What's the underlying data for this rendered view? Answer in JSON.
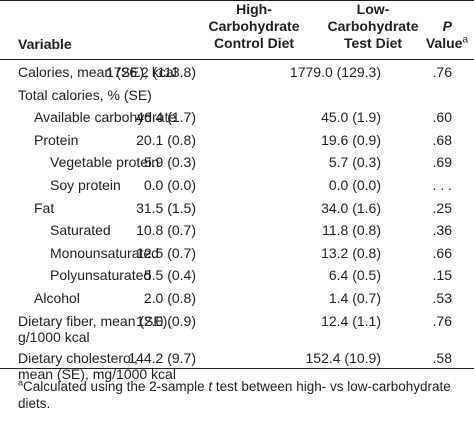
{
  "header": {
    "variable": "Variable",
    "col1_line1": "High-",
    "col1_line2": "Carbohydrate",
    "col1_line3": "Control Diet",
    "col2_line1": "Low-",
    "col2_line2": "Carbohydrate",
    "col2_line3": "Test Diet",
    "p_line1": "P",
    "p_line2": "Value",
    "p_sup": "a"
  },
  "rows": [
    {
      "label": "Calories, mean (SE), kcal",
      "label2": "",
      "indent": 0,
      "v1": "1726.2 (113.8)",
      "v2": "1779.0 (129.3)",
      "p": ".76"
    },
    {
      "label": "Total calories, % (SE)",
      "label2": "",
      "indent": 0,
      "v1": "",
      "v2": "",
      "p": ""
    },
    {
      "label": "Available carbohydrate",
      "label2": "",
      "indent": 1,
      "v1": "46.4 (1.7)",
      "v2": "45.0 (1.9)",
      "p": ".60"
    },
    {
      "label": "Protein",
      "label2": "",
      "indent": 1,
      "v1": "20.1 (0.8)",
      "v2": "19.6 (0.9)",
      "p": ".68"
    },
    {
      "label": "Vegetable protein",
      "label2": "",
      "indent": 2,
      "v1": "5.9 (0.3)",
      "v2": "5.7 (0.3)",
      "p": ".69"
    },
    {
      "label": "Soy protein",
      "label2": "",
      "indent": 2,
      "v1": "0.0 (0.0)",
      "v2": "0.0 (0.0)",
      "p": ". . ."
    },
    {
      "label": "Fat",
      "label2": "",
      "indent": 1,
      "v1": "31.5 (1.5)",
      "v2": "34.0 (1.6)",
      "p": ".25"
    },
    {
      "label": "Saturated",
      "label2": "",
      "indent": 2,
      "v1": "10.8 (0.7)",
      "v2": "11.8 (0.8)",
      "p": ".36"
    },
    {
      "label": "Monounsaturated",
      "label2": "",
      "indent": 2,
      "v1": "12.5 (0.7)",
      "v2": "13.2 (0.8)",
      "p": ".66"
    },
    {
      "label": "Polyunsaturated",
      "label2": "",
      "indent": 2,
      "v1": "5.5 (0.4)",
      "v2": "6.4 (0.5)",
      "p": ".15"
    },
    {
      "label": "Alcohol",
      "label2": "",
      "indent": 1,
      "v1": "2.0 (0.8)",
      "v2": "1.4 (0.7)",
      "p": ".53"
    },
    {
      "label": "Dietary fiber, mean (SE),",
      "label2": "g/1000 kcal",
      "indent": 0,
      "v1": "12.0 (0.9)",
      "v2": "12.4 (1.1)",
      "p": ".76"
    },
    {
      "label": "Dietary cholesterol,",
      "label2": "mean (SE), mg/1000 kcal",
      "indent": 0,
      "v1": "144.2 (9.7)",
      "v2": "152.4 (10.9)",
      "p": ".58"
    }
  ],
  "footnote": {
    "mark": "a",
    "text_before": "Calculated using the 2-sample ",
    "italic": "t",
    "text_after": " test between high- vs low-carbohydrate diets."
  }
}
